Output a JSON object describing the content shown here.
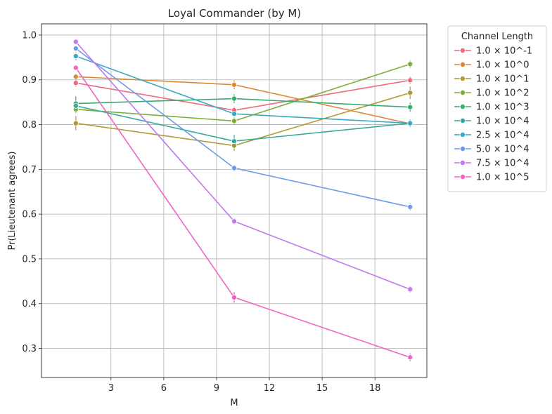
{
  "chart_data": {
    "type": "line",
    "title": "Loyal Commander (by M)",
    "xlabel": "M",
    "ylabel": "Pr(Lieutenant agrees)",
    "x": [
      1,
      10,
      20
    ],
    "xlim": [
      -0.95,
      20.95
    ],
    "ylim": [
      0.235,
      1.025
    ],
    "xticks": [
      3,
      6,
      9,
      12,
      15,
      18
    ],
    "yticks": [
      0.3,
      0.4,
      0.5,
      0.6,
      0.7,
      0.8,
      0.9,
      1.0
    ],
    "xtick_labels": [
      "3",
      "6",
      "9",
      "12",
      "15",
      "18"
    ],
    "ytick_labels": [
      "0.3",
      "0.4",
      "0.5",
      "0.6",
      "0.7",
      "0.8",
      "0.9",
      "1.0"
    ],
    "grid": true,
    "legend": {
      "title": "Channel Length",
      "placement": "outside-right"
    },
    "series": [
      {
        "name": "1.0 × 10^-1",
        "color": "#f0697a",
        "values": [
          0.893,
          0.832,
          0.899
        ],
        "err": [
          0.008,
          0.008,
          0.008
        ]
      },
      {
        "name": "1.0 × 10^0",
        "color": "#d98937",
        "values": [
          0.907,
          0.889,
          0.802
        ],
        "err": [
          0.007,
          0.01,
          0.006
        ]
      },
      {
        "name": "1.0 × 10^1",
        "color": "#b09a32",
        "values": [
          0.803,
          0.753,
          0.871
        ],
        "err": [
          0.016,
          0.012,
          0.014
        ]
      },
      {
        "name": "1.0 × 10^2",
        "color": "#7daf3b",
        "values": [
          0.834,
          0.808,
          0.935
        ],
        "err": [
          0.008,
          0.008,
          0.008
        ]
      },
      {
        "name": "1.0 × 10^3",
        "color": "#36ad6e",
        "values": [
          0.847,
          0.858,
          0.839
        ],
        "err": [
          0.016,
          0.01,
          0.01
        ]
      },
      {
        "name": "1.0 × 10^4",
        "color": "#35aa9a",
        "values": [
          0.842,
          0.763,
          0.803
        ],
        "err": [
          0.01,
          0.014,
          0.008
        ]
      },
      {
        "name": "2.5 × 10^4",
        "color": "#38a9c1",
        "values": [
          0.953,
          0.824,
          0.803
        ],
        "err": [
          0.008,
          0.006,
          0.006
        ]
      },
      {
        "name": "5.0 × 10^4",
        "color": "#6c9bea",
        "values": [
          0.97,
          0.703,
          0.616
        ],
        "err": [
          0.005,
          0.007,
          0.008
        ]
      },
      {
        "name": "7.5 × 10^4",
        "color": "#c178ee",
        "values": [
          0.985,
          0.584,
          0.432
        ],
        "err": [
          0.004,
          0.007,
          0.007
        ]
      },
      {
        "name": "1.0 × 10^5",
        "color": "#f064c6",
        "values": [
          0.927,
          0.414,
          0.28
        ],
        "err": [
          0.005,
          0.012,
          0.009
        ]
      }
    ]
  }
}
